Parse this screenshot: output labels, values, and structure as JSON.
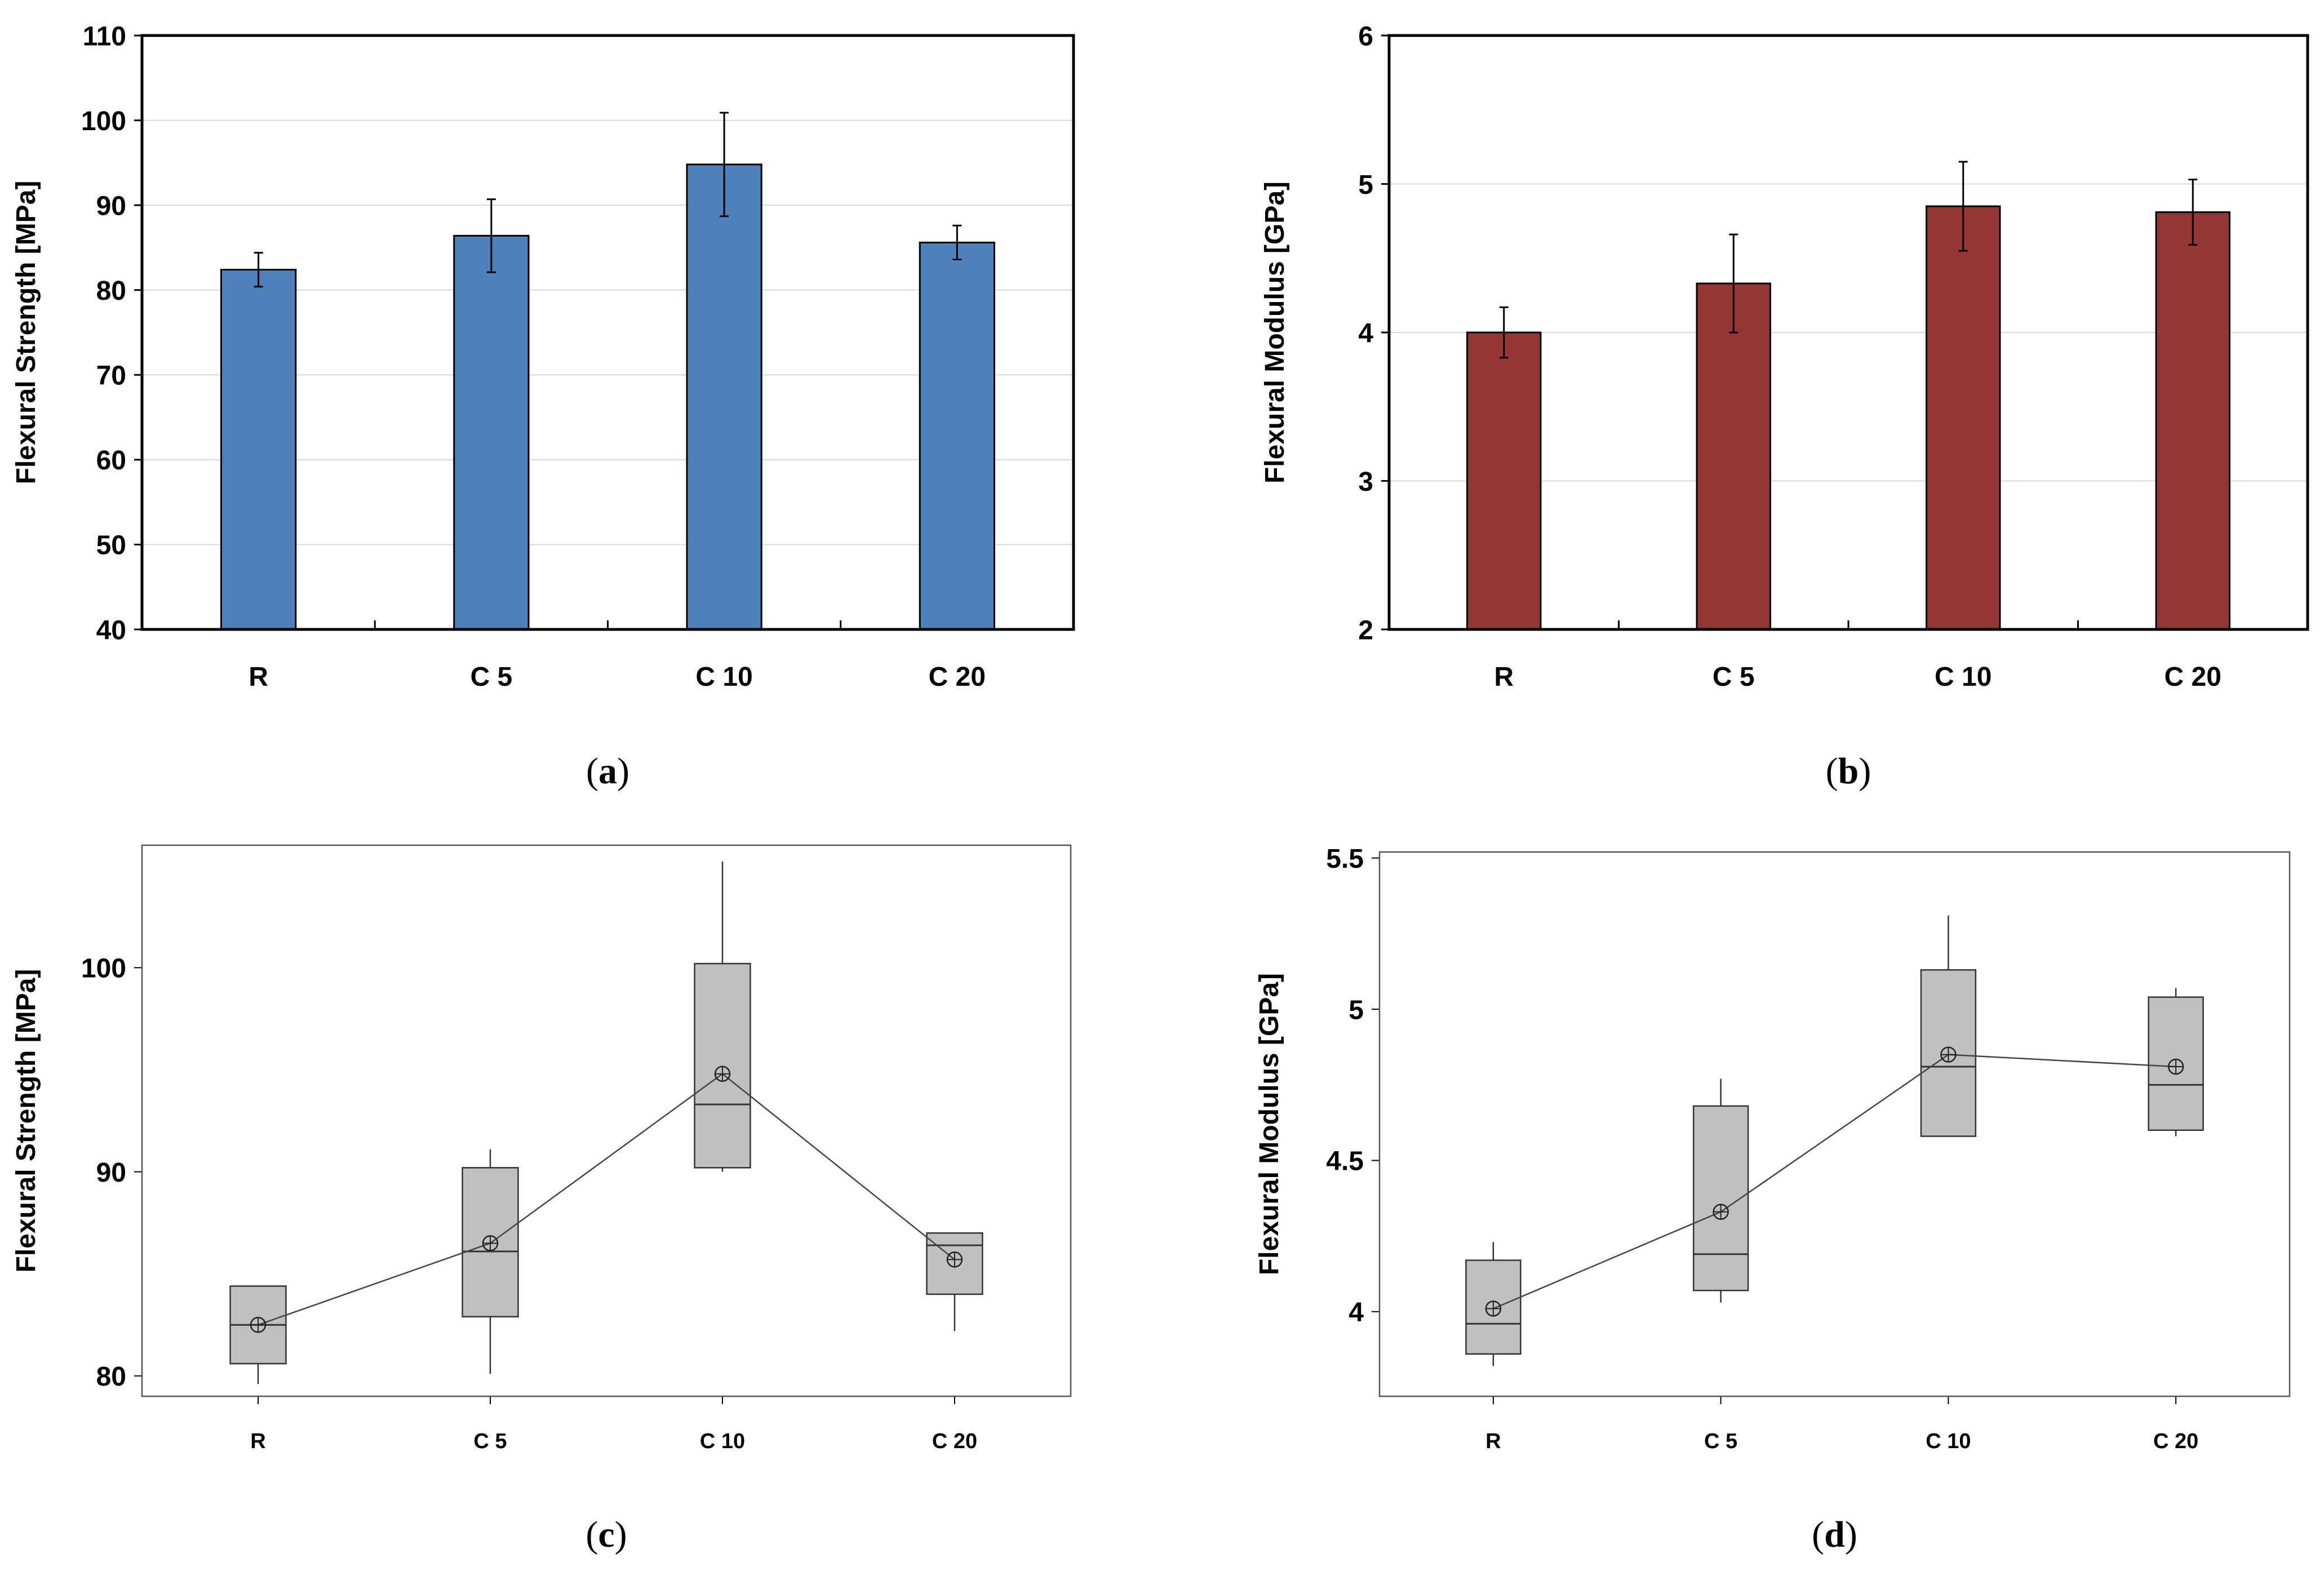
{
  "chart_data": [
    {
      "id": "a",
      "type": "bar",
      "caption_open": "(",
      "caption_letter": "a",
      "caption_close": ")",
      "categories": [
        "R",
        "C 5",
        "C 10",
        "C 20"
      ],
      "values": [
        82.4,
        86.4,
        94.8,
        85.6
      ],
      "errors": [
        2.0,
        4.3,
        6.1,
        2.0
      ],
      "ylabel": "Flexural Strength [MPa]",
      "ylim": [
        40,
        110
      ],
      "yticks": [
        40,
        50,
        60,
        70,
        80,
        90,
        100,
        110
      ],
      "bar_color": "#4f81bd",
      "grid": true
    },
    {
      "id": "b",
      "type": "bar",
      "caption_open": "(",
      "caption_letter": "b",
      "caption_close": ")",
      "categories": [
        "R",
        "C 5",
        "C 10",
        "C 20"
      ],
      "values": [
        4.0,
        4.33,
        4.85,
        4.81
      ],
      "errors": [
        0.17,
        0.33,
        0.3,
        0.22
      ],
      "ylabel": "Flexural Modulus [GPa]",
      "ylim": [
        2,
        6
      ],
      "yticks": [
        2,
        3,
        4,
        5,
        6
      ],
      "bar_color": "#943634",
      "grid": true
    },
    {
      "id": "c",
      "type": "box",
      "caption_open": "(",
      "caption_letter": "c",
      "caption_close": ")",
      "categories": [
        "R",
        "C 5",
        "C 10",
        "C 20"
      ],
      "boxes": [
        {
          "min": 79.6,
          "q1": 80.6,
          "median": 82.5,
          "q3": 84.4,
          "max": 84.4,
          "mean": 82.5
        },
        {
          "min": 80.1,
          "q1": 82.9,
          "median": 86.1,
          "q3": 90.2,
          "max": 91.1,
          "mean": 86.5
        },
        {
          "min": 90.0,
          "q1": 90.2,
          "median": 93.3,
          "q3": 100.2,
          "max": 105.2,
          "mean": 94.8
        },
        {
          "min": 82.2,
          "q1": 84.0,
          "median": 86.4,
          "q3": 87.0,
          "max": 87.0,
          "mean": 85.7
        }
      ],
      "ylabel": "Flexural Strength [MPa]",
      "ylim": [
        79,
        106
      ],
      "yticks": [
        80,
        90,
        100
      ],
      "box_color": "#c0c0c0",
      "grid": false
    },
    {
      "id": "d",
      "type": "box",
      "caption_open": "(",
      "caption_letter": "d",
      "caption_close": ")",
      "categories": [
        "R",
        "C 5",
        "C 10",
        "C 20"
      ],
      "boxes": [
        {
          "min": 3.82,
          "q1": 3.86,
          "median": 3.96,
          "q3": 4.17,
          "max": 4.23,
          "mean": 4.01
        },
        {
          "min": 4.03,
          "q1": 4.07,
          "median": 4.19,
          "q3": 4.68,
          "max": 4.77,
          "mean": 4.33
        },
        {
          "min": 4.58,
          "q1": 4.58,
          "median": 4.81,
          "q3": 5.13,
          "max": 5.31,
          "mean": 4.85
        },
        {
          "min": 4.58,
          "q1": 4.6,
          "median": 4.75,
          "q3": 5.04,
          "max": 5.07,
          "mean": 4.81
        }
      ],
      "ylabel": "Flexural Modulus [GPa]",
      "ylim": [
        3.72,
        5.52
      ],
      "yticks": [
        4,
        4.5,
        5,
        5.5
      ],
      "box_color": "#c0c0c0",
      "grid": false
    }
  ]
}
